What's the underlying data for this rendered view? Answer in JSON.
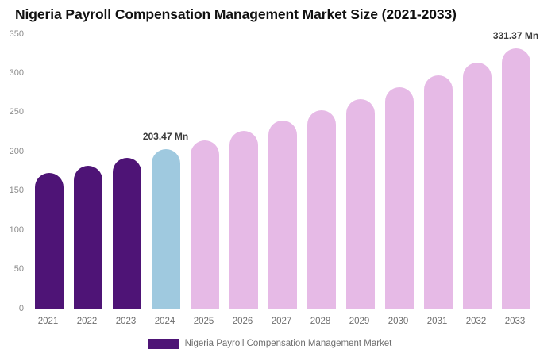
{
  "page": {
    "background": "#ffffff"
  },
  "chart_data": {
    "type": "bar",
    "title": "Nigeria Payroll Compensation Management Market Size (2021-2033)",
    "categories": [
      "2021",
      "2022",
      "2023",
      "2024",
      "2025",
      "2026",
      "2027",
      "2028",
      "2029",
      "2030",
      "2031",
      "2032",
      "2033"
    ],
    "values": [
      172.9,
      182.6,
      192.7,
      203.47,
      214.8,
      226.8,
      239.4,
      252.8,
      266.9,
      281.8,
      297.5,
      314.1,
      331.37
    ],
    "value_unit": "Mn",
    "xlabel": "",
    "ylabel": "",
    "ylim": [
      0,
      350
    ],
    "yticks": [
      350,
      300,
      250,
      200,
      150,
      100,
      50,
      0
    ],
    "grid": false,
    "legend_position": "bottom",
    "bar_colors": [
      "#4E1476",
      "#4E1476",
      "#4E1476",
      "#9FC9DF",
      "#E6BAE6",
      "#E6BAE6",
      "#E6BAE6",
      "#E6BAE6",
      "#E6BAE6",
      "#E6BAE6",
      "#E6BAE6",
      "#E6BAE6",
      "#E6BAE6"
    ],
    "data_labels": [
      {
        "category": "2024",
        "text": "203.47 Mn"
      },
      {
        "category": "2033",
        "text": "331.37 Mn"
      }
    ],
    "legend": {
      "label": "Nigeria Payroll Compensation Management Market",
      "swatch_color": "#4E1476"
    },
    "colors": {
      "historical_bar": "#4E1476",
      "base_year_bar": "#9FC9DF",
      "forecast_bar": "#E6BAE6",
      "axis_line": "#D9D9D9",
      "y_tick_label": "#8C8C8C",
      "x_tick_label": "#6E6E6E",
      "data_label": "#3B3B3B",
      "title": "#111111"
    }
  }
}
